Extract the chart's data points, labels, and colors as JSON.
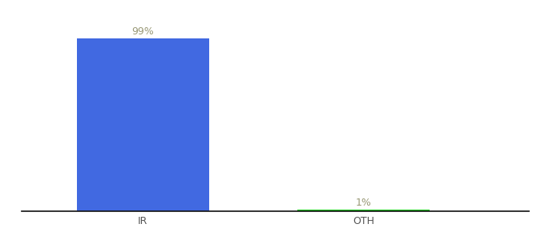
{
  "categories": [
    "IR",
    "OTH"
  ],
  "values": [
    99,
    1
  ],
  "bar_colors": [
    "#4169e1",
    "#22cc22"
  ],
  "labels": [
    "99%",
    "1%"
  ],
  "background_color": "#ffffff",
  "ylim": [
    0,
    110
  ],
  "bar_width": 0.6,
  "label_fontsize": 9,
  "tick_fontsize": 9,
  "label_color": "#999977",
  "tick_color": "#555555",
  "spine_color": "#111111",
  "figsize": [
    6.8,
    3.0
  ],
  "dpi": 100
}
